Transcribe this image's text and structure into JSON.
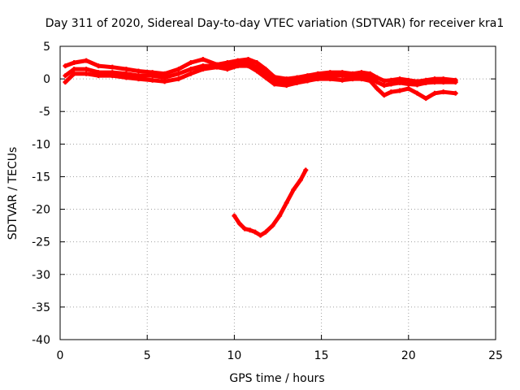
{
  "chart_data": {
    "type": "scatter",
    "title": "Day 311 of 2020, Sidereal Day-to-day VTEC variation (SDTVAR) for receiver kra1",
    "xlabel": "GPS time / hours",
    "ylabel": "SDTVAR / TECUs",
    "xlim": [
      0,
      25
    ],
    "ylim": [
      -40,
      5
    ],
    "xticks": [
      0,
      5,
      10,
      15,
      20,
      25
    ],
    "yticks": [
      5,
      0,
      -5,
      -10,
      -15,
      -20,
      -25,
      -30,
      -35,
      -40
    ],
    "grid": true,
    "series_color": "#ff0000",
    "series": [
      {
        "name": "band-upper",
        "x": [
          0.3,
          0.8,
          1.5,
          2.2,
          3,
          3.8,
          4.5,
          5.3,
          6,
          6.8,
          7.5,
          8.2,
          9,
          9.6,
          10.2,
          10.8,
          11.3,
          11.8,
          12.3,
          13,
          13.6,
          14.2,
          14.8,
          15.5,
          16.2,
          16.8,
          17.3,
          17.8,
          18.2,
          18.6,
          19,
          19.5,
          20,
          20.5,
          21,
          21.5,
          22,
          22.7
        ],
        "y": [
          2,
          2.5,
          2.8,
          2,
          1.8,
          1.5,
          1.2,
          1,
          0.8,
          1.5,
          2.5,
          3,
          2.2,
          2.5,
          2.8,
          3,
          2.5,
          1.5,
          0.3,
          0,
          0.2,
          0.5,
          0.8,
          1,
          1,
          0.8,
          1,
          0.8,
          0.2,
          -0.3,
          -0.2,
          0,
          -0.2,
          -0.4,
          -0.2,
          0,
          0,
          -0.2
        ]
      },
      {
        "name": "band-middle",
        "x": [
          0.3,
          0.8,
          1.5,
          2.2,
          3,
          3.8,
          4.5,
          5.3,
          6,
          6.8,
          7.5,
          8.2,
          9,
          9.6,
          10.2,
          10.8,
          11.3,
          11.8,
          12.3,
          13,
          13.6,
          14.2,
          14.8,
          15.5,
          16.2,
          16.8,
          17.3,
          17.8,
          18.2,
          18.6,
          19,
          19.5,
          20,
          20.5,
          21,
          21.5,
          22,
          22.7
        ],
        "y": [
          0.5,
          1.5,
          1.5,
          1,
          1,
          0.8,
          0.5,
          0.5,
          0.2,
          0.8,
          1.5,
          2,
          2,
          2,
          2.2,
          2.5,
          1.8,
          0.8,
          -0.3,
          -0.6,
          -0.2,
          0,
          0.2,
          0.5,
          0.5,
          0.3,
          0.5,
          0.3,
          -0.5,
          -1,
          -0.8,
          -0.6,
          -0.8,
          -0.9,
          -0.6,
          -0.5,
          -0.5,
          -0.5
        ]
      },
      {
        "name": "band-lower",
        "x": [
          0.3,
          0.8,
          1.5,
          2.2,
          3,
          3.8,
          4.5,
          5.3,
          6,
          6.8,
          7.5,
          8.2,
          9,
          9.6,
          10.2,
          10.8,
          11.3,
          11.8,
          12.3,
          13,
          13.6,
          14.2,
          14.8,
          15.5,
          16.2,
          16.8,
          17.3,
          17.8,
          18.2,
          18.6,
          19,
          19.5,
          20,
          20.5,
          21,
          21.5,
          22,
          22.7
        ],
        "y": [
          -0.5,
          0.8,
          0.8,
          0.5,
          0.5,
          0.2,
          0,
          -0.2,
          -0.4,
          0,
          0.8,
          1.5,
          1.8,
          1.5,
          2,
          2,
          1.2,
          0.2,
          -0.8,
          -1,
          -0.6,
          -0.3,
          0,
          0,
          -0.2,
          0,
          0,
          -0.3,
          -1.5,
          -2.5,
          -2,
          -1.8,
          -1.5,
          -2.2,
          -3,
          -2.2,
          -2,
          -2.2
        ]
      },
      {
        "name": "arc",
        "x": [
          10,
          10.3,
          10.6,
          10.9,
          11.2,
          11.5,
          11.8,
          12.2,
          12.6,
          13,
          13.4,
          13.8,
          14.1
        ],
        "y": [
          -21,
          -22.2,
          -23,
          -23.2,
          -23.5,
          -24,
          -23.5,
          -22.5,
          -21,
          -19,
          -17,
          -15.5,
          -14
        ]
      }
    ]
  }
}
